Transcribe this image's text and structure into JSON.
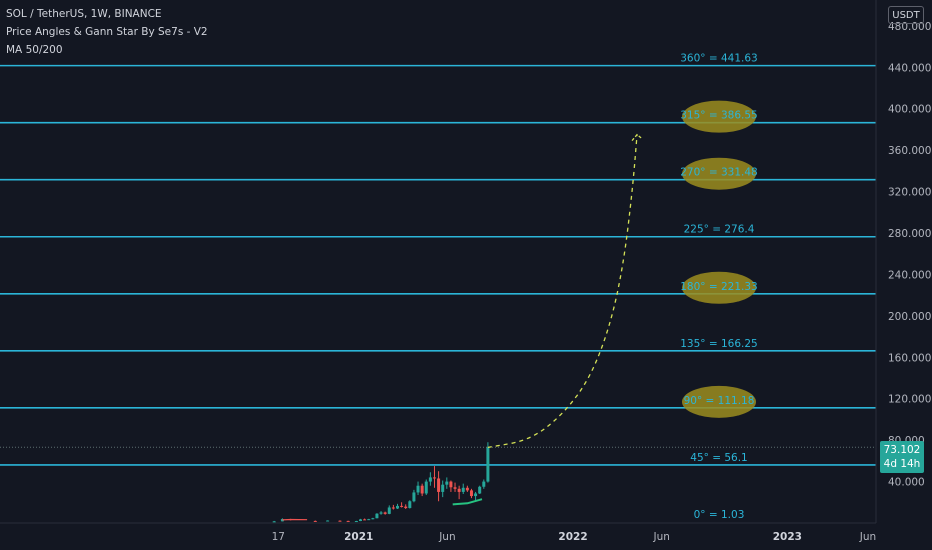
{
  "legend": {
    "symbol": "SOL / TetherUS, 1W, BINANCE",
    "indicator1": "Price Angles & Gann Star By Se7s - V2",
    "indicator2": "MA 50/200"
  },
  "currency_button": "USDT",
  "last_price": {
    "value": "73.102",
    "countdown": "4d 14h",
    "color": "#26a69a"
  },
  "colors": {
    "background": "#131722",
    "gann_line": "#2bb5d8",
    "bull": "#26a69a",
    "bear": "#ef5350",
    "projection": "#d4e157",
    "highlight": "#9c8d1e"
  },
  "chart_data": {
    "type": "line",
    "y_axis": {
      "ticks": [
        40,
        80,
        120,
        160,
        200,
        240,
        280,
        320,
        360,
        400,
        440,
        480
      ],
      "tick_labels": [
        "40.000",
        "80.000",
        "120.000",
        "160.000",
        "200.000",
        "240.000",
        "280.000",
        "320.000",
        "360.000",
        "400.000",
        "440.000",
        "480.000"
      ],
      "range": [
        0,
        505
      ]
    },
    "x_axis": {
      "tick_labels": [
        "17",
        "2021",
        "Jun",
        "2022",
        "Jun",
        "2023",
        "Jun"
      ],
      "tick_dates": [
        "2020-08-17",
        "2021-01-01",
        "2021-06-01",
        "2022-01-01",
        "2022-06-01",
        "2023-01-01",
        "2023-06-01"
      ],
      "range": [
        "2019-05-01",
        "2023-06-01"
      ]
    },
    "gann_levels": [
      {
        "label": "0° = 1.03",
        "value": 1.03,
        "highlighted": false
      },
      {
        "label": "45° = 56.1",
        "value": 56.1,
        "highlighted": false
      },
      {
        "label": "90° = 111.18",
        "value": 111.18,
        "highlighted": true
      },
      {
        "label": "135° = 166.25",
        "value": 166.25,
        "highlighted": false
      },
      {
        "label": "180° = 221.33",
        "value": 221.33,
        "highlighted": true
      },
      {
        "label": "225° = 276.4",
        "value": 276.4,
        "highlighted": false
      },
      {
        "label": "270° = 331.48",
        "value": 331.48,
        "highlighted": true
      },
      {
        "label": "315° = 386.55",
        "value": 386.55,
        "highlighted": true
      },
      {
        "label": "360° = 441.63",
        "value": 441.63,
        "highlighted": false
      }
    ],
    "last_price_line": 73.102,
    "candles": [
      {
        "date": "2020-08-10",
        "o": 1.2,
        "h": 2.0,
        "l": 1.0,
        "c": 1.6
      },
      {
        "date": "2020-08-24",
        "o": 1.6,
        "h": 4.5,
        "l": 1.5,
        "c": 3.8
      },
      {
        "date": "2020-09-07",
        "o": 3.8,
        "h": 4.0,
        "l": 2.5,
        "c": 2.9
      },
      {
        "date": "2020-10-19",
        "o": 2.0,
        "h": 2.4,
        "l": 1.6,
        "c": 1.9
      },
      {
        "date": "2020-11-09",
        "o": 1.9,
        "h": 2.6,
        "l": 1.8,
        "c": 2.4
      },
      {
        "date": "2020-11-30",
        "o": 2.2,
        "h": 2.6,
        "l": 1.9,
        "c": 2.0
      },
      {
        "date": "2020-12-14",
        "o": 2.0,
        "h": 2.2,
        "l": 1.5,
        "c": 1.6
      },
      {
        "date": "2020-12-28",
        "o": 1.6,
        "h": 2.1,
        "l": 1.4,
        "c": 1.9
      },
      {
        "date": "2021-01-04",
        "o": 1.9,
        "h": 4.0,
        "l": 1.8,
        "c": 3.5
      },
      {
        "date": "2021-01-11",
        "o": 3.5,
        "h": 4.3,
        "l": 3.0,
        "c": 3.2
      },
      {
        "date": "2021-01-18",
        "o": 3.2,
        "h": 4.0,
        "l": 3.0,
        "c": 3.7
      },
      {
        "date": "2021-01-25",
        "o": 3.7,
        "h": 5.0,
        "l": 3.5,
        "c": 4.6
      },
      {
        "date": "2021-02-01",
        "o": 4.6,
        "h": 9.5,
        "l": 4.5,
        "c": 9.0
      },
      {
        "date": "2021-02-08",
        "o": 9.0,
        "h": 11.5,
        "l": 8.0,
        "c": 10.2
      },
      {
        "date": "2021-02-15",
        "o": 10.2,
        "h": 11.0,
        "l": 8.0,
        "c": 8.8
      },
      {
        "date": "2021-02-22",
        "o": 8.8,
        "h": 17.0,
        "l": 8.5,
        "c": 15.0
      },
      {
        "date": "2021-03-01",
        "o": 15.0,
        "h": 17.5,
        "l": 13.0,
        "c": 14.0
      },
      {
        "date": "2021-03-08",
        "o": 14.0,
        "h": 18.5,
        "l": 13.5,
        "c": 16.5
      },
      {
        "date": "2021-03-15",
        "o": 16.5,
        "h": 20.0,
        "l": 15.0,
        "c": 15.8
      },
      {
        "date": "2021-03-22",
        "o": 15.8,
        "h": 18.0,
        "l": 13.5,
        "c": 14.5
      },
      {
        "date": "2021-03-29",
        "o": 14.5,
        "h": 22.0,
        "l": 14.0,
        "c": 21.0
      },
      {
        "date": "2021-04-05",
        "o": 21.0,
        "h": 32.0,
        "l": 20.0,
        "c": 29.5
      },
      {
        "date": "2021-04-12",
        "o": 29.5,
        "h": 40.0,
        "l": 27.0,
        "c": 36.0
      },
      {
        "date": "2021-04-19",
        "o": 36.0,
        "h": 38.0,
        "l": 26.0,
        "c": 28.5
      },
      {
        "date": "2021-04-26",
        "o": 28.5,
        "h": 42.0,
        "l": 27.0,
        "c": 40.0
      },
      {
        "date": "2021-05-03",
        "o": 40.0,
        "h": 49.0,
        "l": 36.0,
        "c": 44.0
      },
      {
        "date": "2021-05-10",
        "o": 44.0,
        "h": 55.0,
        "l": 34.0,
        "c": 43.0
      },
      {
        "date": "2021-05-17",
        "o": 43.0,
        "h": 50.0,
        "l": 21.0,
        "c": 30.0
      },
      {
        "date": "2021-05-24",
        "o": 30.0,
        "h": 41.0,
        "l": 25.0,
        "c": 37.0
      },
      {
        "date": "2021-05-31",
        "o": 37.0,
        "h": 44.0,
        "l": 33.0,
        "c": 40.0
      },
      {
        "date": "2021-06-07",
        "o": 40.0,
        "h": 41.0,
        "l": 30.0,
        "c": 34.5
      },
      {
        "date": "2021-06-14",
        "o": 34.5,
        "h": 39.0,
        "l": 30.0,
        "c": 33.0
      },
      {
        "date": "2021-06-21",
        "o": 33.0,
        "h": 36.0,
        "l": 23.0,
        "c": 30.0
      },
      {
        "date": "2021-06-28",
        "o": 30.0,
        "h": 38.0,
        "l": 28.0,
        "c": 34.0
      },
      {
        "date": "2021-07-05",
        "o": 34.0,
        "h": 36.0,
        "l": 30.0,
        "c": 31.5
      },
      {
        "date": "2021-07-12",
        "o": 31.5,
        "h": 33.0,
        "l": 24.0,
        "c": 26.0
      },
      {
        "date": "2021-07-19",
        "o": 26.0,
        "h": 30.0,
        "l": 22.0,
        "c": 28.5
      },
      {
        "date": "2021-07-26",
        "o": 28.5,
        "h": 36.0,
        "l": 28.0,
        "c": 35.0
      },
      {
        "date": "2021-08-02",
        "o": 35.0,
        "h": 42.0,
        "l": 33.0,
        "c": 40.0
      },
      {
        "date": "2021-08-09",
        "o": 40.0,
        "h": 78.0,
        "l": 39.0,
        "c": 73.1
      }
    ],
    "ma_green": [
      {
        "date": "2021-06-10",
        "y": 18
      },
      {
        "date": "2021-07-05",
        "y": 19
      },
      {
        "date": "2021-07-30",
        "y": 23
      }
    ],
    "ma_red": [
      {
        "date": "2020-08-24",
        "y": 3
      },
      {
        "date": "2020-09-07",
        "y": 3.4
      },
      {
        "date": "2020-10-05",
        "y": 3.2
      }
    ],
    "projection": [
      {
        "date": "2021-08-09",
        "y": 73
      },
      {
        "date": "2021-10-20",
        "y": 80
      },
      {
        "date": "2021-12-15",
        "y": 105
      },
      {
        "date": "2022-01-30",
        "y": 140
      },
      {
        "date": "2022-03-05",
        "y": 190
      },
      {
        "date": "2022-03-28",
        "y": 250
      },
      {
        "date": "2022-04-12",
        "y": 320
      },
      {
        "date": "2022-04-20",
        "y": 375
      }
    ]
  }
}
